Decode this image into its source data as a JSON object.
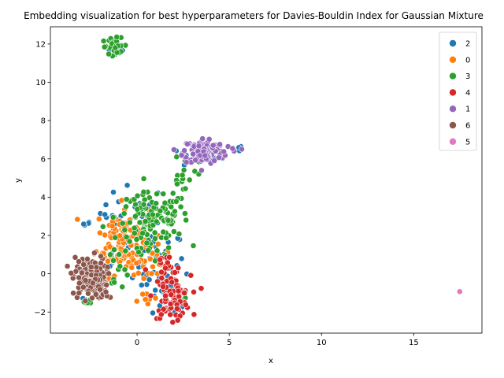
{
  "chart_data": {
    "type": "scatter",
    "title": "Embedding visualization for best hyperparameters for Davies-Bouldin Index for Gaussian Mixture",
    "xlabel": "x",
    "ylabel": "y",
    "xlim": [
      -4.7,
      18.7
    ],
    "ylim": [
      -3.1,
      12.9
    ],
    "xticks": [
      "0",
      "5",
      "10",
      "15"
    ],
    "yticks": [
      "−2",
      "0",
      "2",
      "4",
      "6",
      "8",
      "10",
      "12"
    ],
    "grid": false,
    "legend_position": "top-right",
    "series": [
      {
        "name": "2",
        "color": "#1f77b4",
        "clusters": [
          {
            "cx": -1.0,
            "cy": 11.8,
            "sx": 0.25,
            "sy": 0.2,
            "n": 14
          },
          {
            "cx": -2.8,
            "cy": 2.5,
            "sx": 0.15,
            "sy": 0.15,
            "n": 4
          },
          {
            "cx": -0.2,
            "cy": 3.2,
            "sx": 0.9,
            "sy": 0.7,
            "n": 25
          },
          {
            "cx": 1.0,
            "cy": 0.5,
            "sx": 0.8,
            "sy": 0.9,
            "n": 40
          },
          {
            "cx": 1.8,
            "cy": -1.3,
            "sx": 0.5,
            "sy": 0.5,
            "n": 25
          },
          {
            "cx": -2.7,
            "cy": -1.4,
            "sx": 0.15,
            "sy": 0.1,
            "n": 4
          },
          {
            "cx": 3.5,
            "cy": 6.1,
            "sx": 0.6,
            "sy": 0.3,
            "n": 12
          },
          {
            "cx": 5.4,
            "cy": 6.5,
            "sx": 0.15,
            "sy": 0.1,
            "n": 4
          },
          {
            "cx": -1.5,
            "cy": 0.9,
            "sx": 0.3,
            "sy": 0.3,
            "n": 6
          }
        ]
      },
      {
        "name": "0",
        "color": "#ff7f0e",
        "clusters": [
          {
            "cx": -0.8,
            "cy": 1.8,
            "sx": 0.7,
            "sy": 0.9,
            "n": 110
          },
          {
            "cx": 0.6,
            "cy": 0.6,
            "sx": 0.6,
            "sy": 0.6,
            "n": 25
          },
          {
            "cx": 0.6,
            "cy": -1.2,
            "sx": 0.3,
            "sy": 0.3,
            "n": 6
          },
          {
            "cx": 3.8,
            "cy": 6.2,
            "sx": 0.3,
            "sy": 0.15,
            "n": 4
          }
        ]
      },
      {
        "name": "3",
        "color": "#2ca02c",
        "clusters": [
          {
            "cx": -1.2,
            "cy": 11.9,
            "sx": 0.35,
            "sy": 0.2,
            "n": 30
          },
          {
            "cx": 0.8,
            "cy": 3.0,
            "sx": 1.0,
            "sy": 0.6,
            "n": 110
          },
          {
            "cx": 0.8,
            "cy": 1.5,
            "sx": 0.8,
            "sy": 0.5,
            "n": 30
          },
          {
            "cx": 2.5,
            "cy": 4.8,
            "sx": 0.35,
            "sy": 0.6,
            "n": 14
          },
          {
            "cx": 3.0,
            "cy": 5.8,
            "sx": 0.3,
            "sy": 0.3,
            "n": 8
          },
          {
            "cx": -1.3,
            "cy": 0.4,
            "sx": 0.5,
            "sy": 0.6,
            "n": 15
          },
          {
            "cx": -2.5,
            "cy": -1.4,
            "sx": 0.2,
            "sy": 0.1,
            "n": 4
          },
          {
            "cx": 2.5,
            "cy": -1.5,
            "sx": 0.2,
            "sy": 0.1,
            "n": 3
          }
        ]
      },
      {
        "name": "4",
        "color": "#d62728",
        "clusters": [
          {
            "cx": 1.9,
            "cy": -1.2,
            "sx": 0.5,
            "sy": 0.55,
            "n": 85
          },
          {
            "cx": 1.5,
            "cy": 0.2,
            "sx": 0.5,
            "sy": 0.4,
            "n": 18
          }
        ]
      },
      {
        "name": "1",
        "color": "#9467bd",
        "clusters": [
          {
            "cx": 3.6,
            "cy": 6.4,
            "sx": 0.55,
            "sy": 0.35,
            "n": 110
          },
          {
            "cx": 5.2,
            "cy": 6.5,
            "sx": 0.2,
            "sy": 0.1,
            "n": 5
          }
        ]
      },
      {
        "name": "6",
        "color": "#8c564b",
        "clusters": [
          {
            "cx": -2.6,
            "cy": -0.2,
            "sx": 0.45,
            "sy": 0.55,
            "n": 130
          },
          {
            "cx": -1.8,
            "cy": -0.9,
            "sx": 0.3,
            "sy": 0.3,
            "n": 10
          }
        ]
      },
      {
        "name": "5",
        "color": "#e377c2",
        "clusters": [
          {
            "cx": 17.5,
            "cy": -0.95,
            "sx": 0.02,
            "sy": 0.02,
            "n": 2
          }
        ]
      }
    ]
  }
}
